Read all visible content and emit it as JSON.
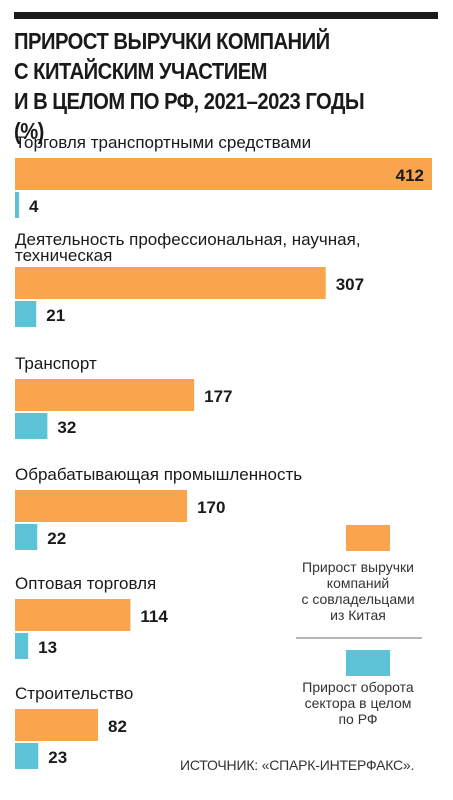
{
  "header": {
    "title": "ПРИРОСТ ВЫРУЧКИ КОМПАНИЙ\nС КИТАЙСКИМ УЧАСТИЕМ\nИ В ЦЕЛОМ ПО РФ, 2021–2023 ГОДЫ (%)"
  },
  "colors": {
    "china_series": "#f9a54d",
    "rf_series": "#5cc3d7",
    "text": "#1a1a1a",
    "rule": "#1a1a1a"
  },
  "chart_data": {
    "type": "bar",
    "orientation": "horizontal",
    "title": "ПРИРОСТ ВЫРУЧКИ КОМПАНИЙ С КИТАЙСКИМ УЧАСТИЕМ И В ЦЕЛОМ ПО РФ, 2021–2023 ГОДЫ (%)",
    "categories": [
      [
        "Торговля транспортными средствами"
      ],
      [
        "Деятельность профессиональная, научная,",
        "техническая"
      ],
      [
        "Транспорт"
      ],
      [
        "Обрабатывающая промышленность"
      ],
      [
        "Оптовая торговля"
      ],
      [
        "Строительство"
      ]
    ],
    "series": [
      {
        "name": "Прирост выручки компаний с совладельцами из Китая",
        "color": "#f9a54d",
        "values": [
          412,
          307,
          177,
          170,
          114,
          82
        ]
      },
      {
        "name": "Прирост оборота сектора в целом по РФ",
        "color": "#5cc3d7",
        "values": [
          4,
          21,
          32,
          22,
          13,
          23
        ]
      }
    ],
    "data_labels": true,
    "legend": {
      "placement": "right",
      "items": [
        {
          "series": 0,
          "lines": [
            "Прирост выручки",
            "компаний",
            "с совладельцами",
            "из Китая"
          ]
        },
        {
          "series": 1,
          "lines": [
            "Прирост оборота",
            "сектора в целом",
            "по РФ"
          ]
        }
      ]
    }
  },
  "footer": {
    "source": "ИСТОЧНИК: «СПАРК-ИНТЕРФАКС»."
  }
}
